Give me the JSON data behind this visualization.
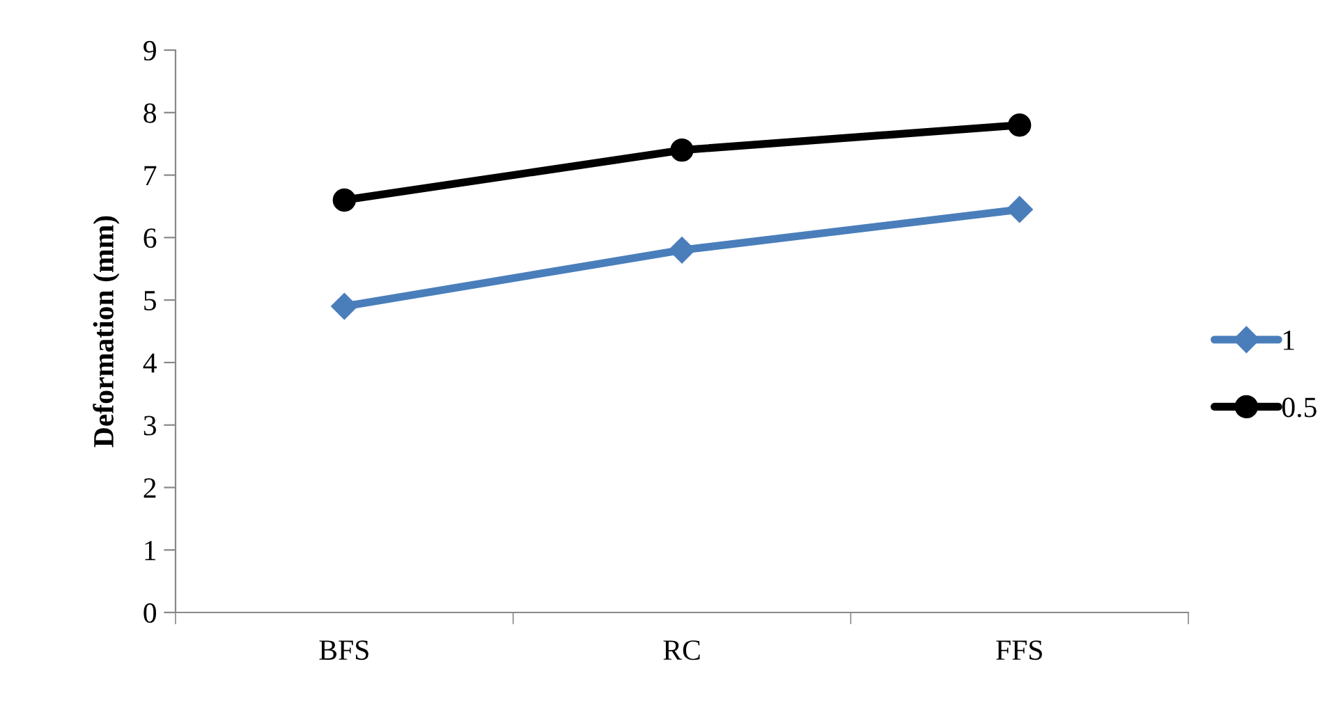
{
  "chart_data": {
    "type": "line",
    "ylabel": "Deformation (mm)",
    "categories": [
      "BFS",
      "RC",
      "FFS"
    ],
    "series": [
      {
        "name": "1",
        "color": "#4a7ebb",
        "marker": "diamond",
        "values": [
          4.9,
          5.8,
          6.45
        ]
      },
      {
        "name": "0.5",
        "color": "#000000",
        "marker": "circle",
        "values": [
          6.6,
          7.4,
          7.8
        ]
      }
    ],
    "ylim": [
      0,
      9
    ],
    "yticks": [
      0,
      1,
      2,
      3,
      4,
      5,
      6,
      7,
      8,
      9
    ],
    "grid": false,
    "legend": "right",
    "line_style": "solid"
  }
}
